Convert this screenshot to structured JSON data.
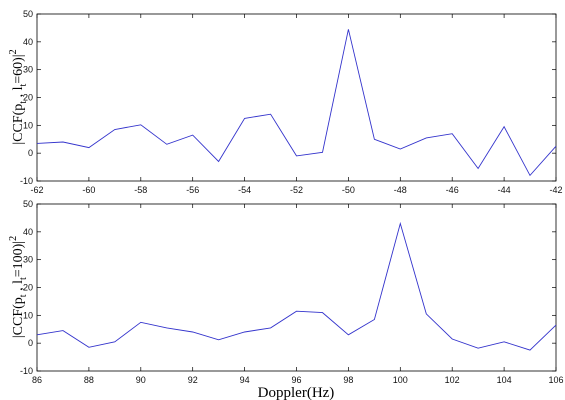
{
  "chart_data": [
    {
      "type": "line",
      "ylabel": {
        "pre": "|CCF(p",
        "sub1": "t",
        "mid": " , l",
        "sub2": "t",
        "post": "=60)|",
        "sup": "2"
      },
      "xlabel": "",
      "xlim": [
        -62,
        -42
      ],
      "ylim": [
        -10,
        50
      ],
      "xticks": [
        -62,
        -60,
        -58,
        -56,
        -54,
        -52,
        -50,
        -48,
        -46,
        -44,
        -42
      ],
      "yticks": [
        -10,
        0,
        10,
        20,
        30,
        40,
        50
      ],
      "grid": false,
      "line_color": "#3333cc",
      "x": [
        -62,
        -61,
        -60,
        -59,
        -58,
        -57,
        -56,
        -55,
        -54,
        -53,
        -52,
        -51,
        -50,
        -49,
        -48,
        -47,
        -46,
        -45,
        -44,
        -43,
        -42
      ],
      "y": [
        3.5,
        4,
        2,
        8.5,
        10.2,
        3.2,
        6.5,
        -3,
        12.5,
        14,
        -1,
        0.3,
        44.5,
        5,
        1.5,
        5.5,
        7,
        -5.5,
        9.5,
        -8,
        2.5
      ]
    },
    {
      "type": "line",
      "ylabel": {
        "pre": "|CCF(p",
        "sub1": "t",
        "mid": " , l",
        "sub2": "t",
        "post": "=100)|",
        "sup": "2"
      },
      "xlabel": "Doppler(Hz)",
      "xlim": [
        86,
        106
      ],
      "ylim": [
        -10,
        50
      ],
      "xticks": [
        86,
        88,
        90,
        92,
        94,
        96,
        98,
        100,
        102,
        104,
        106
      ],
      "yticks": [
        -10,
        0,
        10,
        20,
        30,
        40,
        50
      ],
      "grid": false,
      "line_color": "#3333cc",
      "x": [
        86,
        87,
        88,
        89,
        90,
        91,
        92,
        93,
        94,
        95,
        96,
        97,
        98,
        99,
        100,
        101,
        102,
        103,
        104,
        105,
        106
      ],
      "y": [
        3,
        4.5,
        -1.5,
        0.5,
        7.5,
        5.5,
        4,
        1.2,
        4,
        5.5,
        11.5,
        11,
        3,
        8.5,
        43,
        10.5,
        1.5,
        -1.8,
        0.5,
        -2.5,
        6.5
      ]
    }
  ]
}
